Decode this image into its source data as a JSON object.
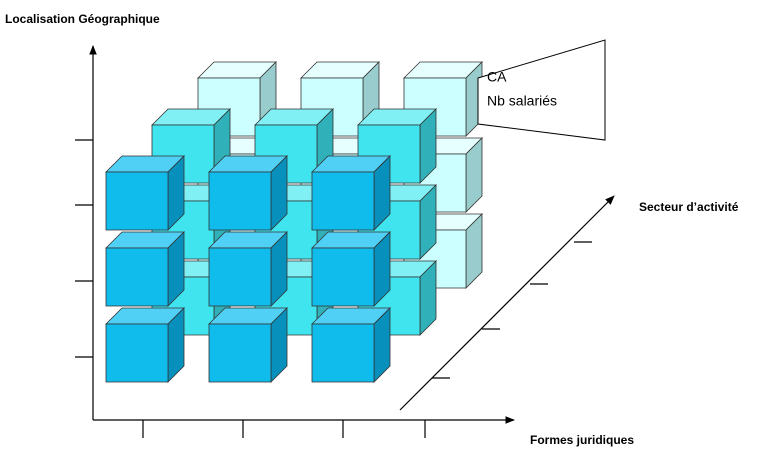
{
  "axes": {
    "y": "Localisation Géographique",
    "z": "Secteur d’activité",
    "x": "Formes juridiques"
  },
  "callout": {
    "lines": [
      "CA",
      "Nb salariés"
    ]
  }
}
